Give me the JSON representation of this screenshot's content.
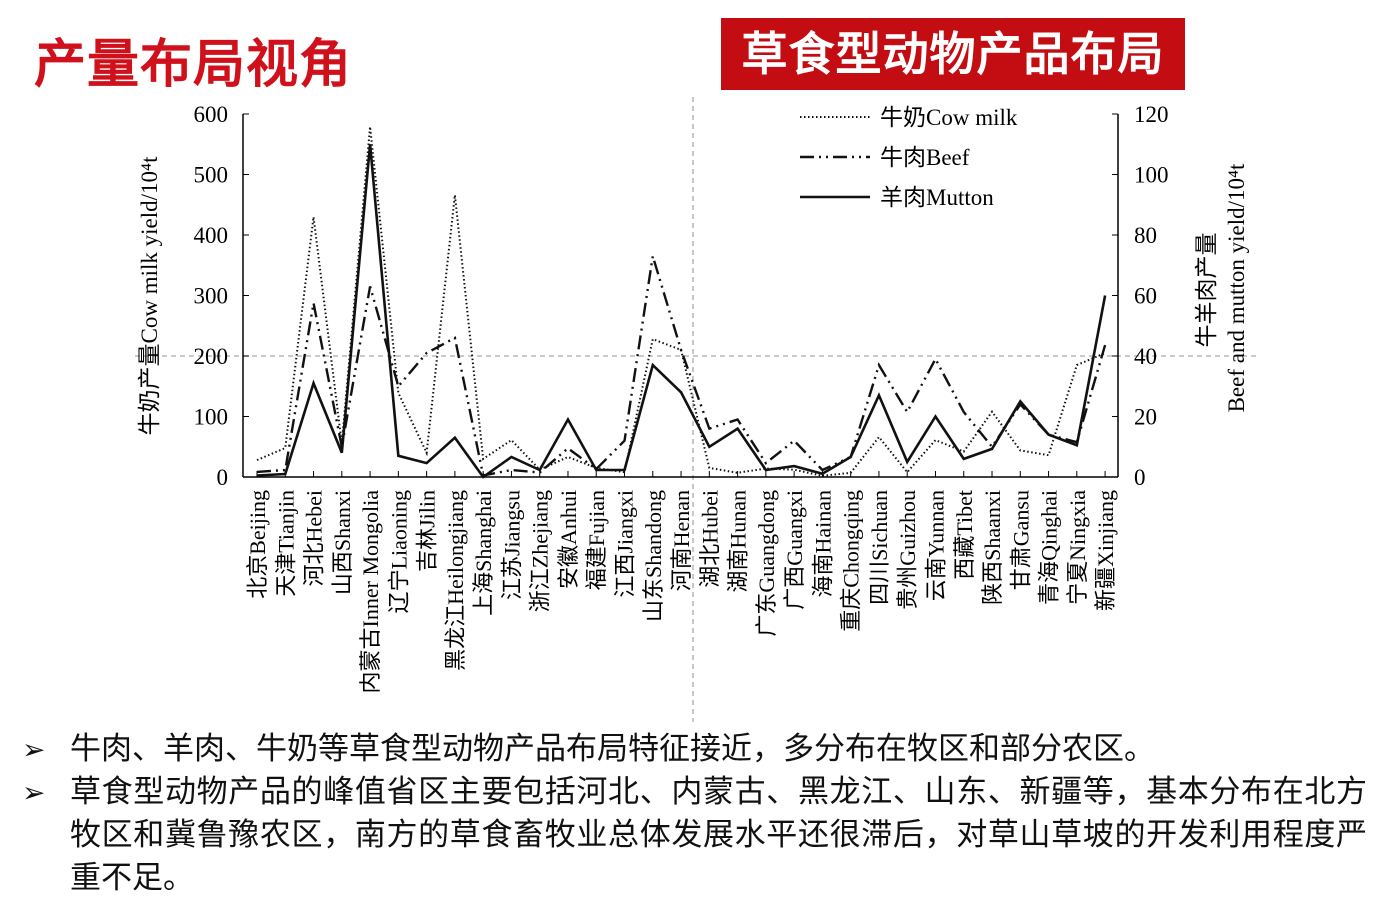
{
  "title": "产量布局视角",
  "banner": "草食型动物产品布局",
  "bullets": [
    "牛肉、羊肉、牛奶等草食型动物产品布局特征接近，多分布在牧区和部分农区。",
    "草食型动物产品的峰值省区主要包括河北、内蒙古、黑龙江、山东、新疆等，基本分布在北方牧区和冀鲁豫农区，南方的草食畜牧业总体发展水平还很滞后，对草山草坡的开发利用程度严重不足。"
  ],
  "bullet_icon": "arrow-right-icon",
  "chart_data": {
    "type": "line",
    "ylabel": "牛奶产量Cow milk yield/10⁴t",
    "y2label_line1": "牛羊肉产量",
    "y2label_line2": "Beef and mutton yield/10⁴t",
    "ylim": [
      0,
      600
    ],
    "y2lim": [
      0,
      120
    ],
    "yticks": [
      "0",
      "100",
      "200",
      "300",
      "400",
      "500",
      "600"
    ],
    "y2ticks": [
      "0",
      "20",
      "40",
      "60",
      "80",
      "100",
      "120"
    ],
    "reference_line_y": 200,
    "legend_position": "top-right",
    "categories": [
      "北京Beijing",
      "天津Tianjin",
      "河北Hebei",
      "山西Shanxi",
      "内蒙古Inner Mongolia",
      "辽宁Liaoning",
      "吉林Jilin",
      "黑龙江Heilongjiang",
      "上海Shanghai",
      "江苏Jiangsu",
      "浙江Zhejiang",
      "安徽Anhui",
      "福建Fujian",
      "江西Jiangxi",
      "山东Shandong",
      "河南Henan",
      "湖北Hubei",
      "湖南Hunan",
      "广东Guangdong",
      "广西Guangxi",
      "海南Hainan",
      "重庆Chongqing",
      "四川Sichuan",
      "贵州Guizhou",
      "云南Yunnan",
      "西藏Tibet",
      "陕西Shaanxi",
      "甘肃Gansu",
      "青海Qinghai",
      "宁夏Ningxia",
      "新疆Xinjiang"
    ],
    "series": [
      {
        "name": "牛奶Cow milk",
        "axis": "left",
        "style": "dotted",
        "values": [
          28,
          48,
          430,
          55,
          579,
          139,
          40,
          466,
          30,
          61,
          12,
          33,
          15,
          8,
          228,
          210,
          15,
          7,
          14,
          12,
          2,
          7,
          66,
          8,
          61,
          42,
          108,
          44,
          36,
          185,
          205
        ]
      },
      {
        "name": "牛肉Beef",
        "axis": "right",
        "style": "dashdot",
        "values": [
          1.7,
          2.3,
          57.5,
          10,
          63,
          30,
          41,
          46,
          0.5,
          2.3,
          1.5,
          9.5,
          2.6,
          12,
          73,
          42,
          16,
          19,
          4.6,
          12,
          2.3,
          6.6,
          37,
          21.5,
          39,
          21.5,
          10,
          24,
          14,
          11.5,
          43.6
        ]
      },
      {
        "name": "羊肉Mutton",
        "axis": "right",
        "style": "solid",
        "values": [
          0.5,
          1,
          31,
          8,
          110,
          7,
          4.6,
          13,
          0,
          6.6,
          2.3,
          19,
          2.3,
          2.3,
          37,
          28,
          10,
          16,
          2.3,
          3.6,
          1.1,
          6.6,
          27,
          5,
          20,
          6,
          9.3,
          25,
          14,
          10.5,
          60
        ]
      }
    ]
  }
}
